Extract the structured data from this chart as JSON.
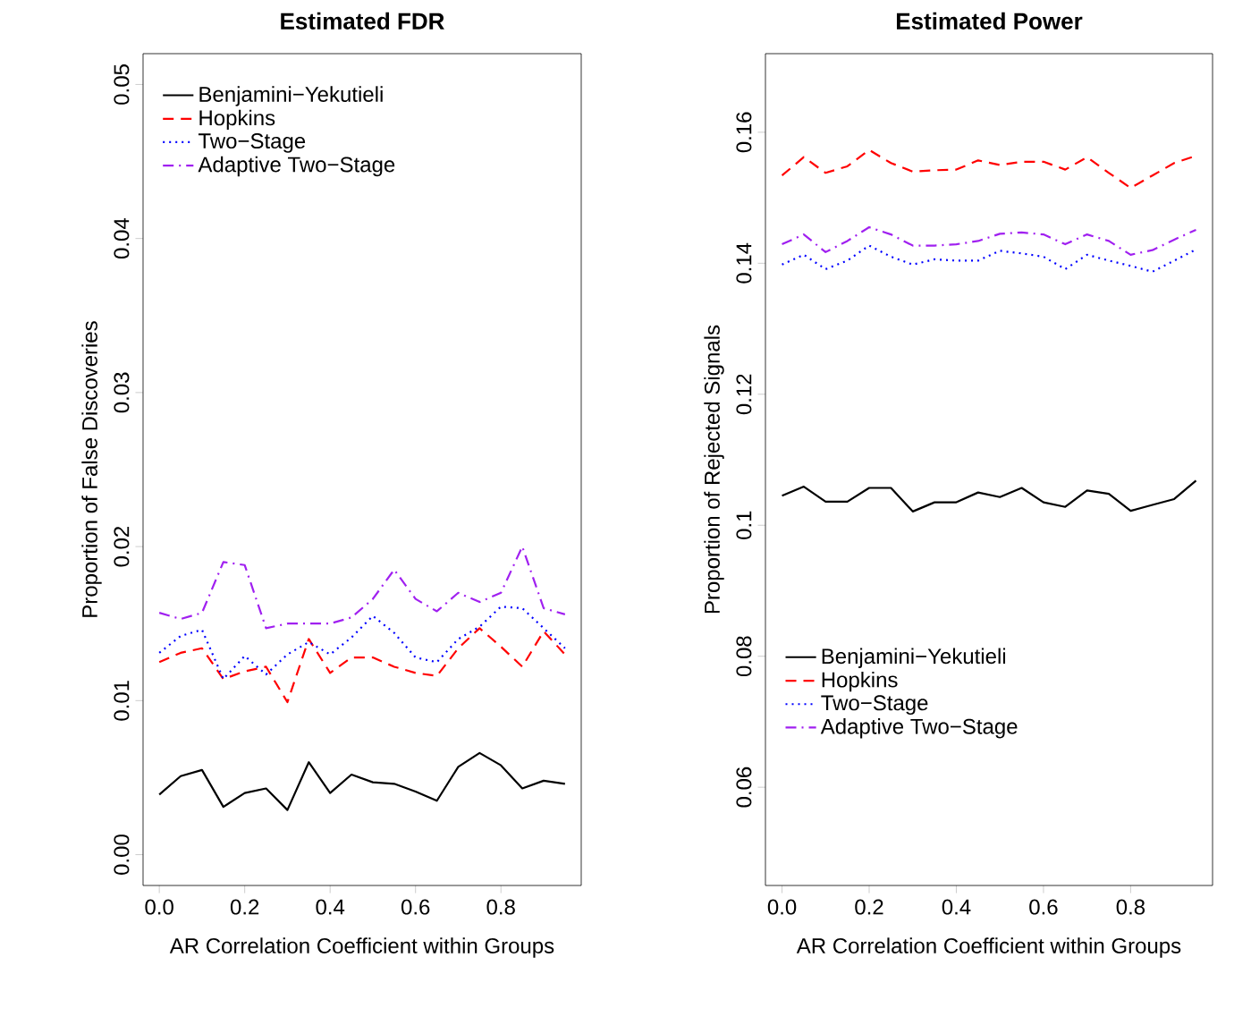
{
  "chart_data": [
    {
      "type": "line",
      "title": "Estimated FDR",
      "xlabel": "AR Correlation Coefficient within Groups",
      "ylabel": "Proportion of False Discoveries",
      "x": [
        0,
        0.05,
        0.1,
        0.15,
        0.2,
        0.25,
        0.3,
        0.35,
        0.4,
        0.45,
        0.5,
        0.55,
        0.6,
        0.65,
        0.7,
        0.75,
        0.8,
        0.85,
        0.9,
        0.95
      ],
      "xlim": [
        -0.038,
        0.988
      ],
      "xticks": [
        {
          "value": 0,
          "label": "0.0"
        },
        0.2,
        0.4,
        0.6,
        0.8
      ],
      "ylim": [
        -0.002,
        0.052
      ],
      "yticks": [
        {
          "value": 0,
          "label": "0.00"
        },
        0.01,
        0.02,
        0.03,
        0.04,
        0.05
      ],
      "legend": "top left",
      "grid": false,
      "marker": "none",
      "series": [
        {
          "name": "Benjamini−Yekutieli",
          "color": "#000000",
          "line_style": "solid",
          "values": [
            0.0039,
            0.0051,
            0.0055,
            0.0031,
            0.004,
            0.0043,
            0.0029,
            0.006,
            0.004,
            0.0052,
            0.0047,
            0.0046,
            0.0041,
            0.0035,
            0.0057,
            0.0066,
            0.0058,
            0.0043,
            0.0048,
            0.0046
          ]
        },
        {
          "name": "Hopkins",
          "color": "#ff0000",
          "line_style": "dashed",
          "values": [
            0.0125,
            0.0131,
            0.0134,
            0.0114,
            0.0119,
            0.0122,
            0.0099,
            0.014,
            0.0118,
            0.0128,
            0.0128,
            0.0122,
            0.0118,
            0.0116,
            0.0134,
            0.0147,
            0.0135,
            0.0122,
            0.0145,
            0.013
          ]
        },
        {
          "name": "Two−Stage",
          "color": "#0000ff",
          "line_style": "dotted",
          "values": [
            0.0131,
            0.0142,
            0.0146,
            0.0114,
            0.0129,
            0.0117,
            0.013,
            0.0138,
            0.013,
            0.0141,
            0.0155,
            0.0144,
            0.0128,
            0.0125,
            0.014,
            0.0148,
            0.0161,
            0.016,
            0.0147,
            0.0134
          ]
        },
        {
          "name": "Adaptive Two−Stage",
          "color": "#a020f0",
          "line_style": "dashdot",
          "values": [
            0.0157,
            0.0153,
            0.0157,
            0.019,
            0.0188,
            0.0147,
            0.015,
            0.015,
            0.015,
            0.0154,
            0.0166,
            0.0185,
            0.0166,
            0.0158,
            0.017,
            0.0164,
            0.017,
            0.02,
            0.016,
            0.0156
          ]
        }
      ]
    },
    {
      "type": "line",
      "title": "Estimated Power",
      "xlabel": "AR Correlation Coefficient within Groups",
      "ylabel": "Proportion of Rejected Signals",
      "x": [
        0,
        0.05,
        0.1,
        0.15,
        0.2,
        0.25,
        0.3,
        0.35,
        0.4,
        0.45,
        0.5,
        0.55,
        0.6,
        0.65,
        0.7,
        0.75,
        0.8,
        0.85,
        0.9,
        0.95
      ],
      "xlim": [
        -0.038,
        0.988
      ],
      "xticks": [
        {
          "value": 0,
          "label": "0.0"
        },
        0.2,
        0.4,
        0.6,
        0.8
      ],
      "ylim": [
        0.045,
        0.172
      ],
      "yticks": [
        0.06,
        0.08,
        0.1,
        0.12,
        0.14,
        0.16
      ],
      "legend": "bottom left",
      "grid": false,
      "marker": "none",
      "series": [
        {
          "name": "Benjamini−Yekutieli",
          "color": "#000000",
          "line_style": "solid",
          "values": [
            0.1045,
            0.1059,
            0.1036,
            0.1036,
            0.1057,
            0.1057,
            0.1021,
            0.1035,
            0.1035,
            0.105,
            0.1043,
            0.1057,
            0.1035,
            0.1028,
            0.1053,
            0.1048,
            0.1022,
            0.1031,
            0.104,
            0.1068
          ]
        },
        {
          "name": "Hopkins",
          "color": "#ff0000",
          "line_style": "dashed",
          "values": [
            0.1534,
            0.1562,
            0.1538,
            0.1548,
            0.1573,
            0.1553,
            0.154,
            0.1542,
            0.1543,
            0.1557,
            0.155,
            0.1555,
            0.1555,
            0.1543,
            0.1562,
            0.1538,
            0.1515,
            0.1534,
            0.1553,
            0.1564
          ]
        },
        {
          "name": "Two−Stage",
          "color": "#0000ff",
          "line_style": "dotted",
          "values": [
            0.1398,
            0.1413,
            0.1391,
            0.1404,
            0.1427,
            0.141,
            0.1398,
            0.1406,
            0.1404,
            0.1404,
            0.1419,
            0.1415,
            0.141,
            0.1391,
            0.1413,
            0.1404,
            0.1396,
            0.1387,
            0.1404,
            0.1421
          ]
        },
        {
          "name": "Adaptive Two−Stage",
          "color": "#a020f0",
          "line_style": "dashdot",
          "values": [
            0.1429,
            0.1444,
            0.1417,
            0.1434,
            0.1455,
            0.1444,
            0.1427,
            0.1427,
            0.1429,
            0.1434,
            0.1445,
            0.1447,
            0.1444,
            0.1429,
            0.1444,
            0.1434,
            0.1413,
            0.142,
            0.1436,
            0.1451
          ]
        }
      ]
    }
  ]
}
